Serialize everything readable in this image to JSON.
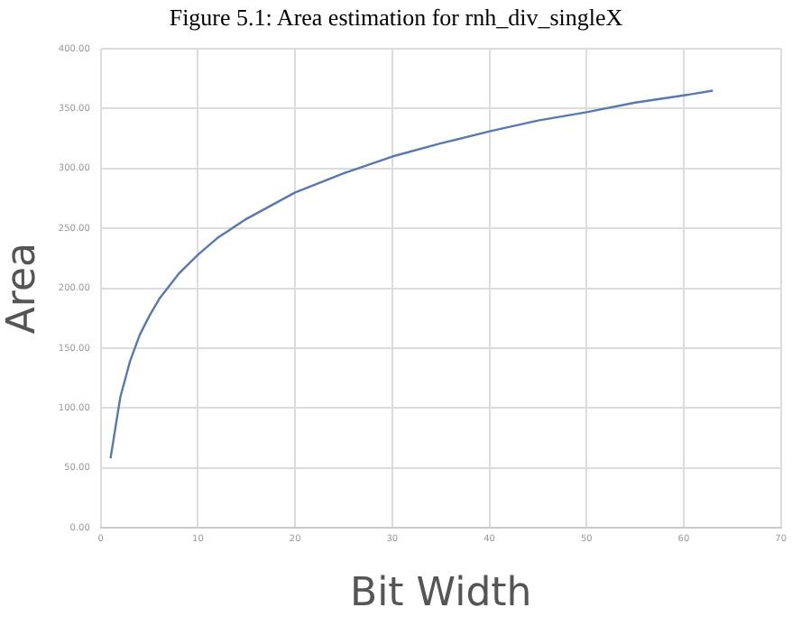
{
  "chart_data": {
    "type": "line",
    "title": "Figure 5.1: Area estimation for rnh_div_singleX",
    "xlabel": "Bit Width",
    "ylabel": "Area",
    "x": [
      1,
      2,
      3,
      4,
      5,
      6,
      8,
      10,
      12,
      15,
      20,
      25,
      30,
      35,
      40,
      45,
      50,
      55,
      60,
      63
    ],
    "series": [
      {
        "color": "#5a78b0",
        "values": [
          58,
          109,
          139,
          161,
          177,
          191,
          212,
          228,
          242,
          258,
          280,
          296,
          310,
          321,
          331,
          340,
          347,
          355,
          361,
          365
        ]
      }
    ],
    "xlim": [
      0,
      70
    ],
    "xticks": [
      {
        "value": 0,
        "label": "0"
      },
      {
        "value": 10,
        "label": "10"
      },
      {
        "value": 20,
        "label": "20"
      },
      {
        "value": 30,
        "label": "30"
      },
      {
        "value": 40,
        "label": "40"
      },
      {
        "value": 50,
        "label": "50"
      },
      {
        "value": 60,
        "label": "60"
      },
      {
        "value": 70,
        "label": "70"
      }
    ],
    "ylim": [
      0,
      400
    ],
    "yticks": [
      {
        "value": 0,
        "label": "0.00"
      },
      {
        "value": 50,
        "label": "50.00"
      },
      {
        "value": 100,
        "label": "100.00"
      },
      {
        "value": 150,
        "label": "150.00"
      },
      {
        "value": 200,
        "label": "200.00"
      },
      {
        "value": 250,
        "label": "250.00"
      },
      {
        "value": 300,
        "label": "300.00"
      },
      {
        "value": 350,
        "label": "350.00"
      },
      {
        "value": 400,
        "label": "400.00"
      }
    ],
    "grid": true,
    "legend": false,
    "marker": "none",
    "line_style": "solid"
  }
}
